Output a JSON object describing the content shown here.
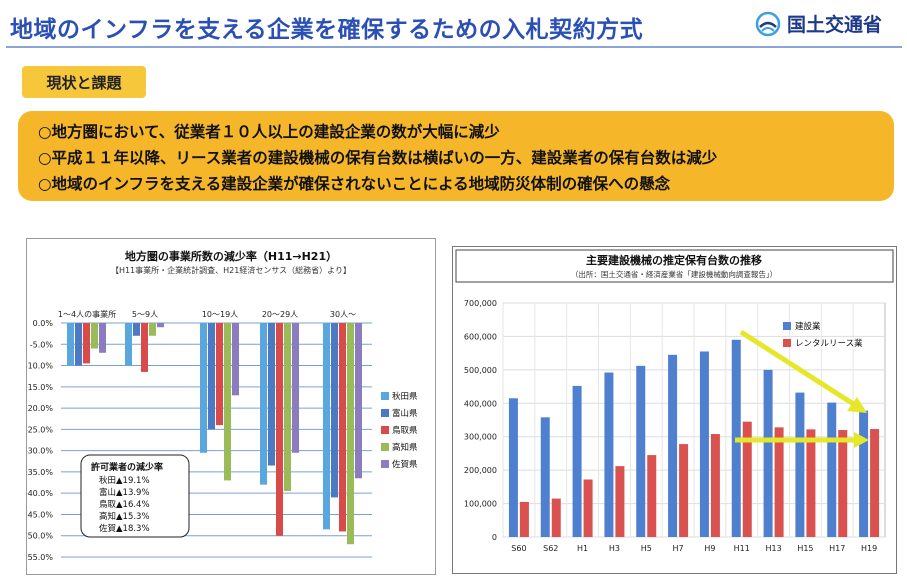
{
  "title": "地域のインフラを支える企業を確保するための入札契約方式",
  "logo": {
    "text": "国土交通省",
    "icon": "mlit-logo-icon"
  },
  "section_label": "現状と課題",
  "bullets": [
    "○地方圏において、従業者１０人以上の建設企業の数が大幅に減少",
    "○平成１１年以降、リース業者の建設機械の保有台数は横ばいの一方、建設業者の保有台数は減少",
    "○地域のインフラを支える建設企業が確保されないことによる地域防災体制の確保への懸念"
  ],
  "colors": {
    "title": "#2a4fb5",
    "banner": "#f5b62a",
    "label": "#f6c63b",
    "blue": "#4f7fcf",
    "red": "#d9524f",
    "arrow": "#e6e62a"
  },
  "chart_data": [
    {
      "type": "bar",
      "title": "地方圏の事業所数の減少率（H11→H21）",
      "subtitle": "【H11事業所・企業統計調査、H21経済センサス（総務省）より】",
      "categories": [
        "1～4人の事業所",
        "5～9人",
        "10～19人",
        "20～29人",
        "30人～"
      ],
      "ylim": [
        -55,
        0
      ],
      "yticks": [
        "0.0%",
        "-5.0%",
        "-10.0%",
        "-15.0%",
        "-20.0%",
        "-25.0%",
        "-30.0%",
        "-35.0%",
        "-40.0%",
        "-45.0%",
        "-50.0%",
        "-55.0%"
      ],
      "legend_position": "right",
      "series": [
        {
          "name": "秋田県",
          "color": "#5aa7e0",
          "values": [
            -10,
            -10,
            -30.5,
            -38,
            -48.5
          ]
        },
        {
          "name": "富山県",
          "color": "#4b79c4",
          "values": [
            -10,
            -3,
            -25,
            -33.5,
            -41
          ]
        },
        {
          "name": "鳥取県",
          "color": "#d94b4b",
          "values": [
            -9.5,
            -11.5,
            -24,
            -50,
            -49
          ]
        },
        {
          "name": "高知県",
          "color": "#9bbb59",
          "values": [
            -6,
            -3,
            -37,
            -39.5,
            -52
          ]
        },
        {
          "name": "佐賀県",
          "color": "#8b7bbf",
          "values": [
            -7,
            -1,
            -17,
            -30.5,
            -36.5
          ]
        }
      ],
      "annotation": {
        "title": "許可業者の減少率",
        "rows": [
          "秋田▲19.1%",
          "富山▲13.9%",
          "鳥取▲16.4%",
          "高知▲15.3%",
          "佐賀▲18.3%"
        ]
      }
    },
    {
      "type": "bar",
      "title": "主要建設機械の推定保有台数の推移",
      "subtitle": "（出所：国土交通省・経済産業省「建設機械動向調査報告」）",
      "categories": [
        "S60",
        "S62",
        "H1",
        "H3",
        "H5",
        "H7",
        "H9",
        "H11",
        "H13",
        "H15",
        "H17",
        "H19"
      ],
      "ylim": [
        0,
        700000
      ],
      "yticks": [
        "0",
        "100,000",
        "200,000",
        "300,000",
        "400,000",
        "500,000",
        "600,000",
        "700,000"
      ],
      "legend_position": "top-right",
      "series": [
        {
          "name": "建設業",
          "color": "#4f7fcf",
          "values": [
            415000,
            358000,
            452000,
            492000,
            512000,
            545000,
            555000,
            590000,
            500000,
            432000,
            402000,
            378000
          ]
        },
        {
          "name": "レンタルリース業",
          "color": "#d9524f",
          "values": [
            105000,
            115000,
            172000,
            212000,
            245000,
            278000,
            308000,
            345000,
            328000,
            322000,
            320000,
            323000
          ]
        }
      ]
    }
  ]
}
